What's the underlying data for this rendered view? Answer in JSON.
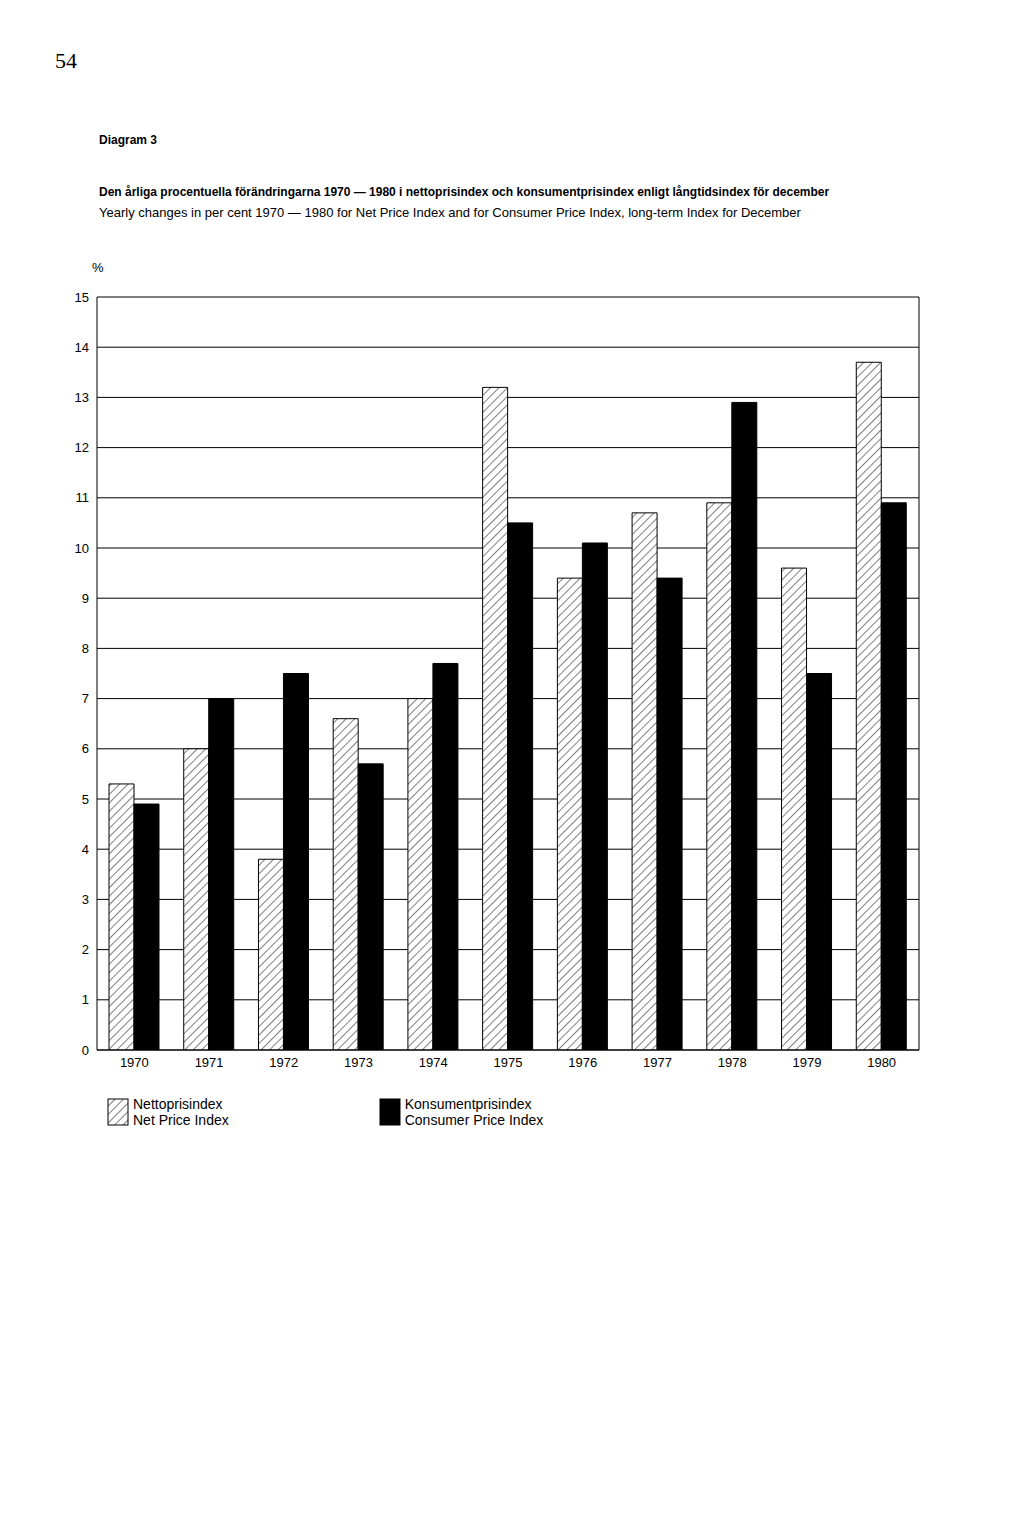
{
  "page_number": "54",
  "figure_label": "Diagram 3",
  "chart_data": {
    "type": "bar",
    "title": "Den årliga procentuella förändringarna 1970 — 1980 i nettoprisindex och konsumentprisindex enligt långtidsindex för december",
    "subtitle": "Yearly changes in per cent 1970 — 1980 for Net Price Index and for Consumer Price Index, long-term Index for December",
    "y_label": "%",
    "categories": [
      "1970",
      "1971",
      "1972",
      "1973",
      "1974",
      "1975",
      "1976",
      "1977",
      "1978",
      "1979",
      "1980"
    ],
    "series": [
      {
        "name": "Nettoprisindex\nNet Price Index",
        "color": "#ffffff",
        "values": [
          5.3,
          6.0,
          3.8,
          6.6,
          7.0,
          13.2,
          9.4,
          10.7,
          10.9,
          9.6,
          13.7
        ]
      },
      {
        "name": "Konsumentprisindex\nConsumer Price Index",
        "color": "#000000",
        "values": [
          4.9,
          7.0,
          7.5,
          5.7,
          7.7,
          10.5,
          10.1,
          9.4,
          12.9,
          7.5,
          10.9
        ]
      }
    ],
    "ylim": [
      0,
      15
    ],
    "yticks": [
      0,
      1,
      2,
      3,
      4,
      5,
      6,
      7,
      8,
      9,
      10,
      11,
      12,
      13,
      14,
      15
    ],
    "grid": true,
    "legend": "bottom"
  }
}
